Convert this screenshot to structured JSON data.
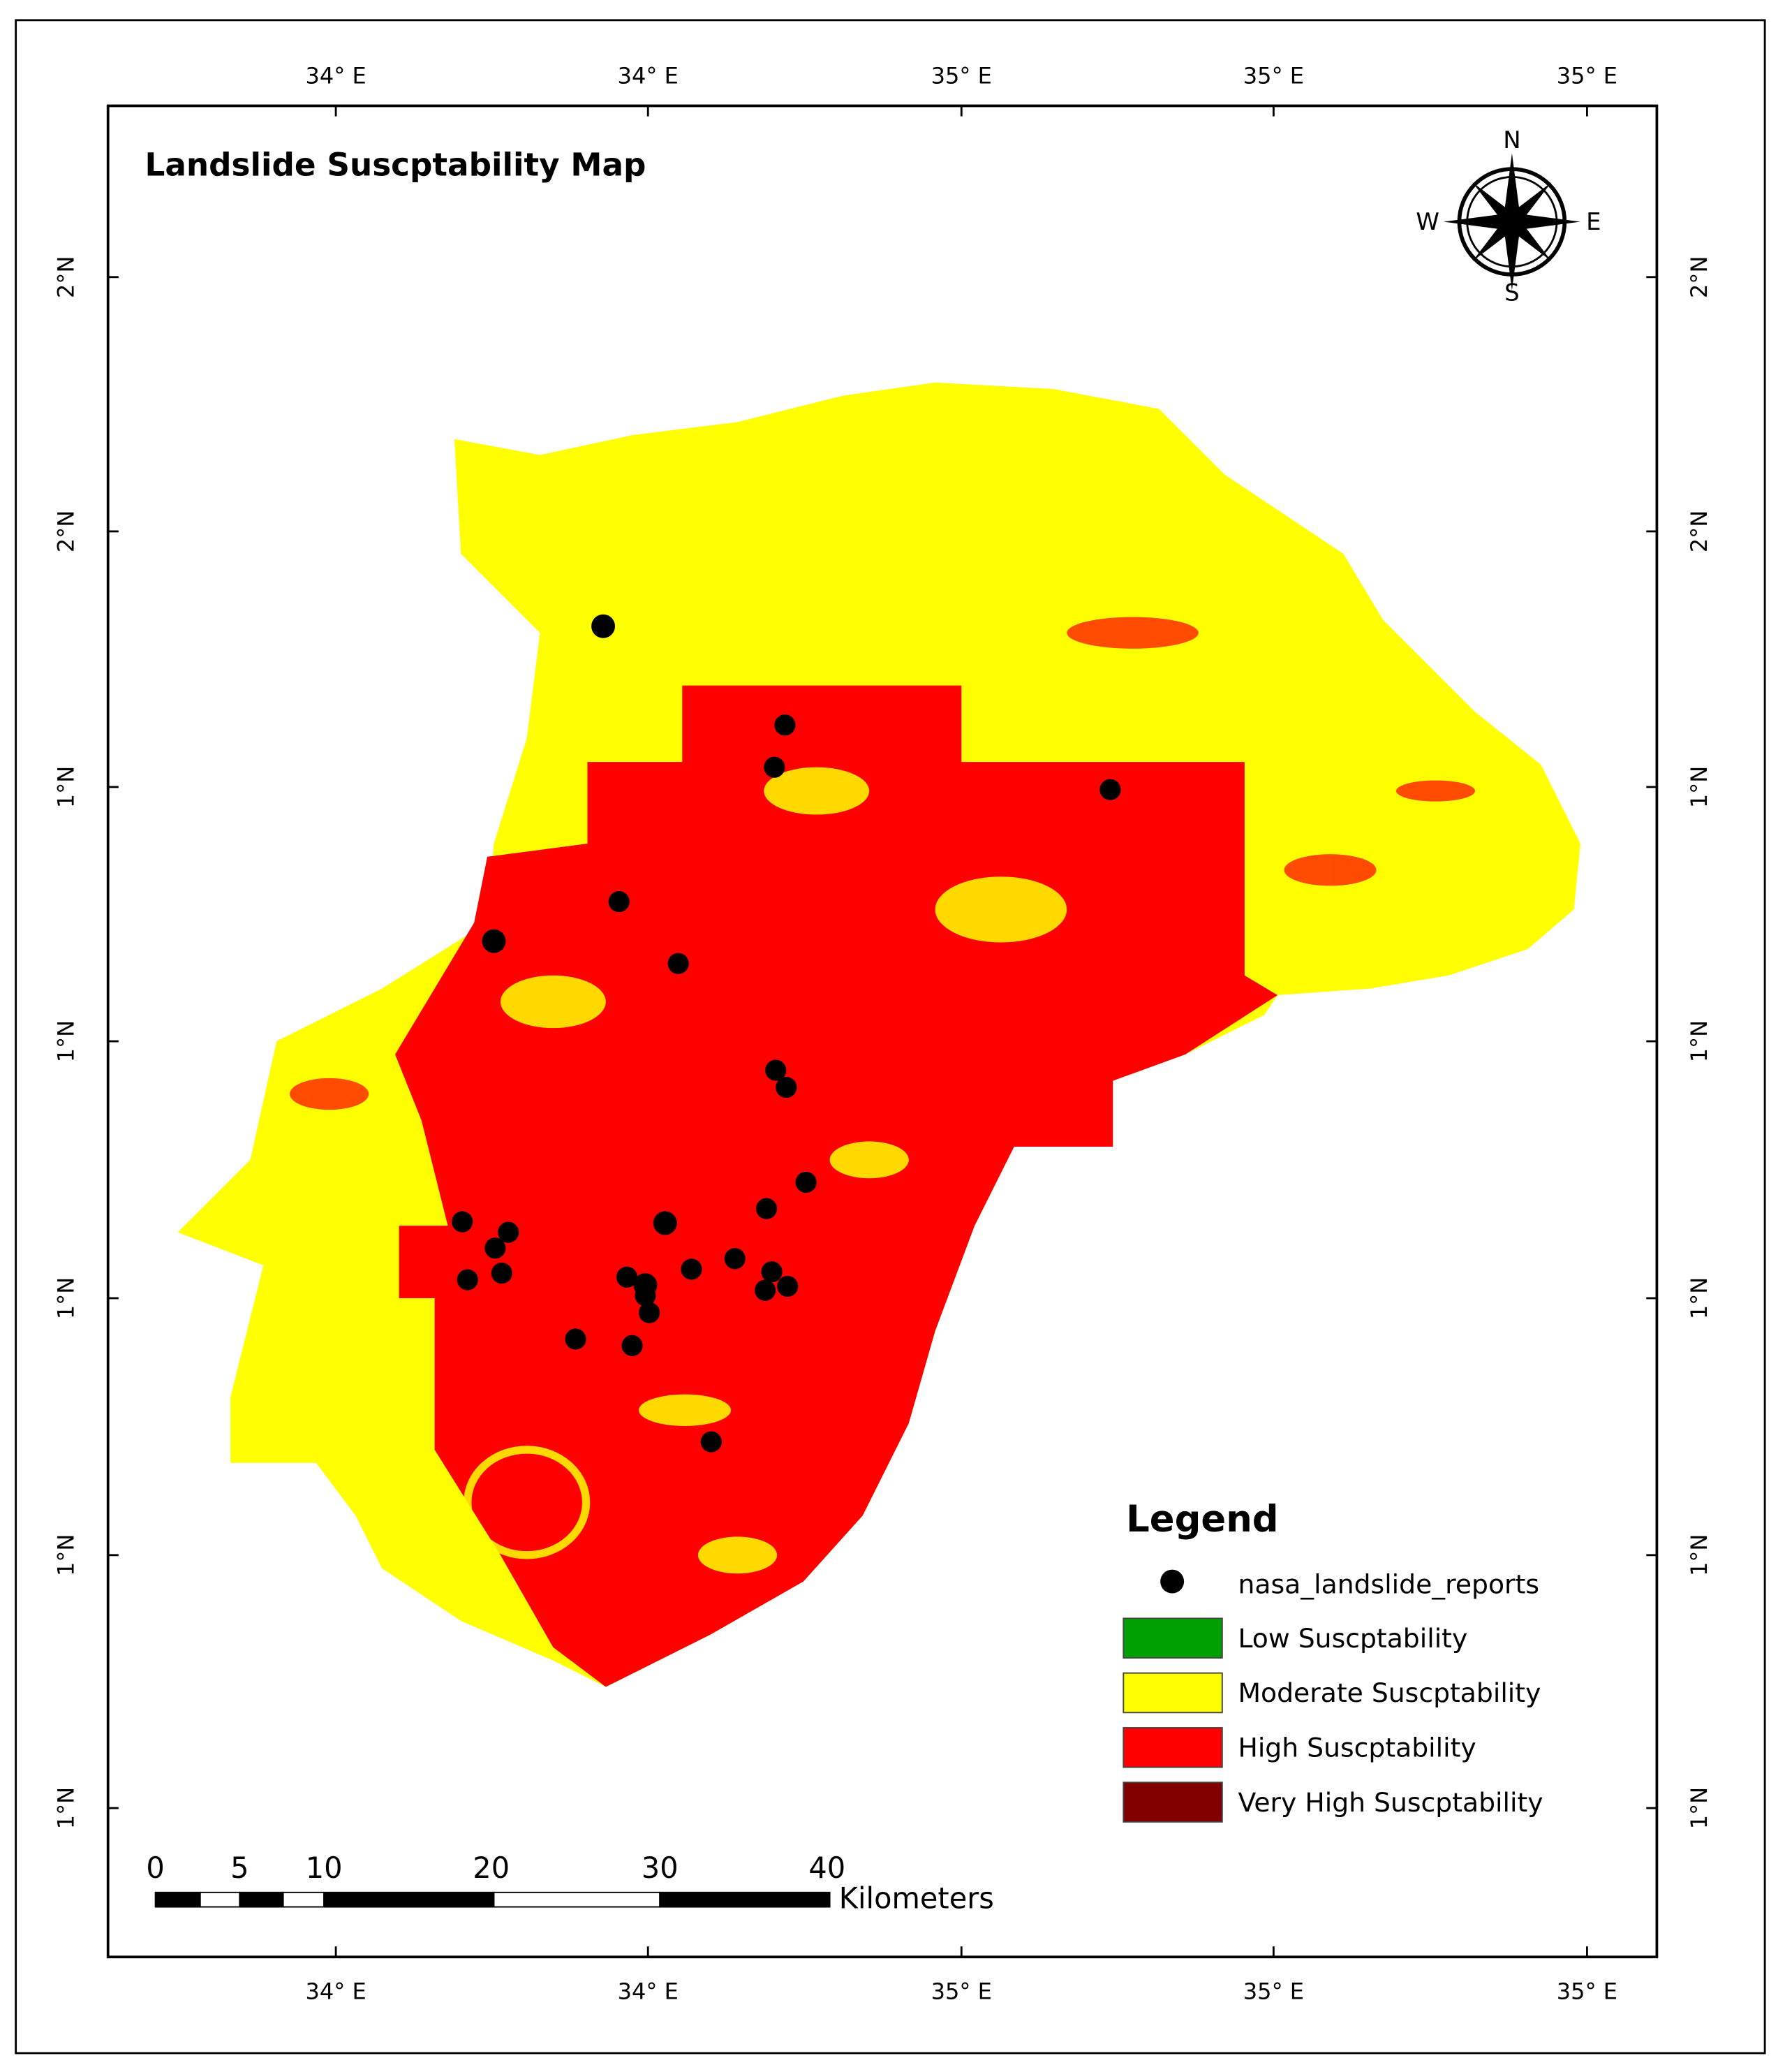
{
  "header": {
    "title": "Landslide Suscptability Map"
  },
  "frame": {
    "top_labels": [
      "34° E",
      "34° E",
      "35° E",
      "35° E",
      "35° E"
    ],
    "bottom_labels": [
      "34° E",
      "34° E",
      "35° E",
      "35° E",
      "35° E"
    ],
    "left_labels": [
      "2°N",
      "2°N",
      "1°N",
      "1°N",
      "1°N",
      "1°N",
      "1°N"
    ],
    "right_labels": [
      "2°N",
      "2°N",
      "1°N",
      "1°N",
      "1°N",
      "1°N",
      "1°N"
    ]
  },
  "compass": {
    "north": "N",
    "south": "S",
    "west": "W",
    "east": "E"
  },
  "legend": {
    "title": "Legend",
    "points_label": "nasa_landslide_reports",
    "items": [
      {
        "label": "Low Suscptability",
        "color": "#00a000"
      },
      {
        "label": "Moderate Suscptability",
        "color": "#ffff00"
      },
      {
        "label": "High Suscptability",
        "color": "#ff0000"
      },
      {
        "label": "Very High Suscptability",
        "color": "#800000"
      }
    ]
  },
  "scale_bar": {
    "labels": [
      0,
      5,
      10,
      20,
      30,
      40
    ],
    "unit": "Kilometers"
  }
}
